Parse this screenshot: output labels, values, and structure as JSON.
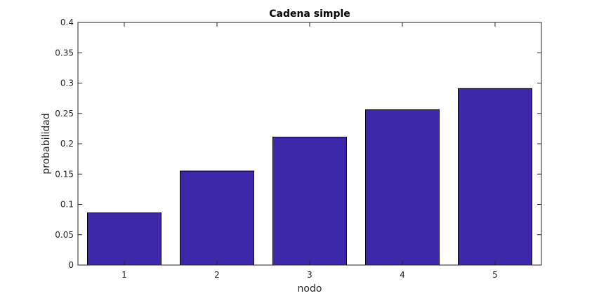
{
  "chart_data": {
    "type": "bar",
    "title": "Cadena simple",
    "xlabel": "nodo",
    "ylabel": "probabilidad",
    "categories": [
      "1",
      "2",
      "3",
      "4",
      "5"
    ],
    "values": [
      0.086,
      0.155,
      0.211,
      0.256,
      0.291
    ],
    "ylim": [
      0,
      0.4
    ],
    "yticks": [
      "0",
      "0.05",
      "0.1",
      "0.15",
      "0.2",
      "0.25",
      "0.3",
      "0.35",
      "0.4"
    ],
    "ytick_values": [
      0,
      0.05,
      0.1,
      0.15,
      0.2,
      0.25,
      0.3,
      0.35,
      0.4
    ],
    "grid": false,
    "legend": "none",
    "colors": {
      "bar_fill": "#3c28a8",
      "bar_edge": "#000000",
      "axis": "#262626"
    }
  }
}
